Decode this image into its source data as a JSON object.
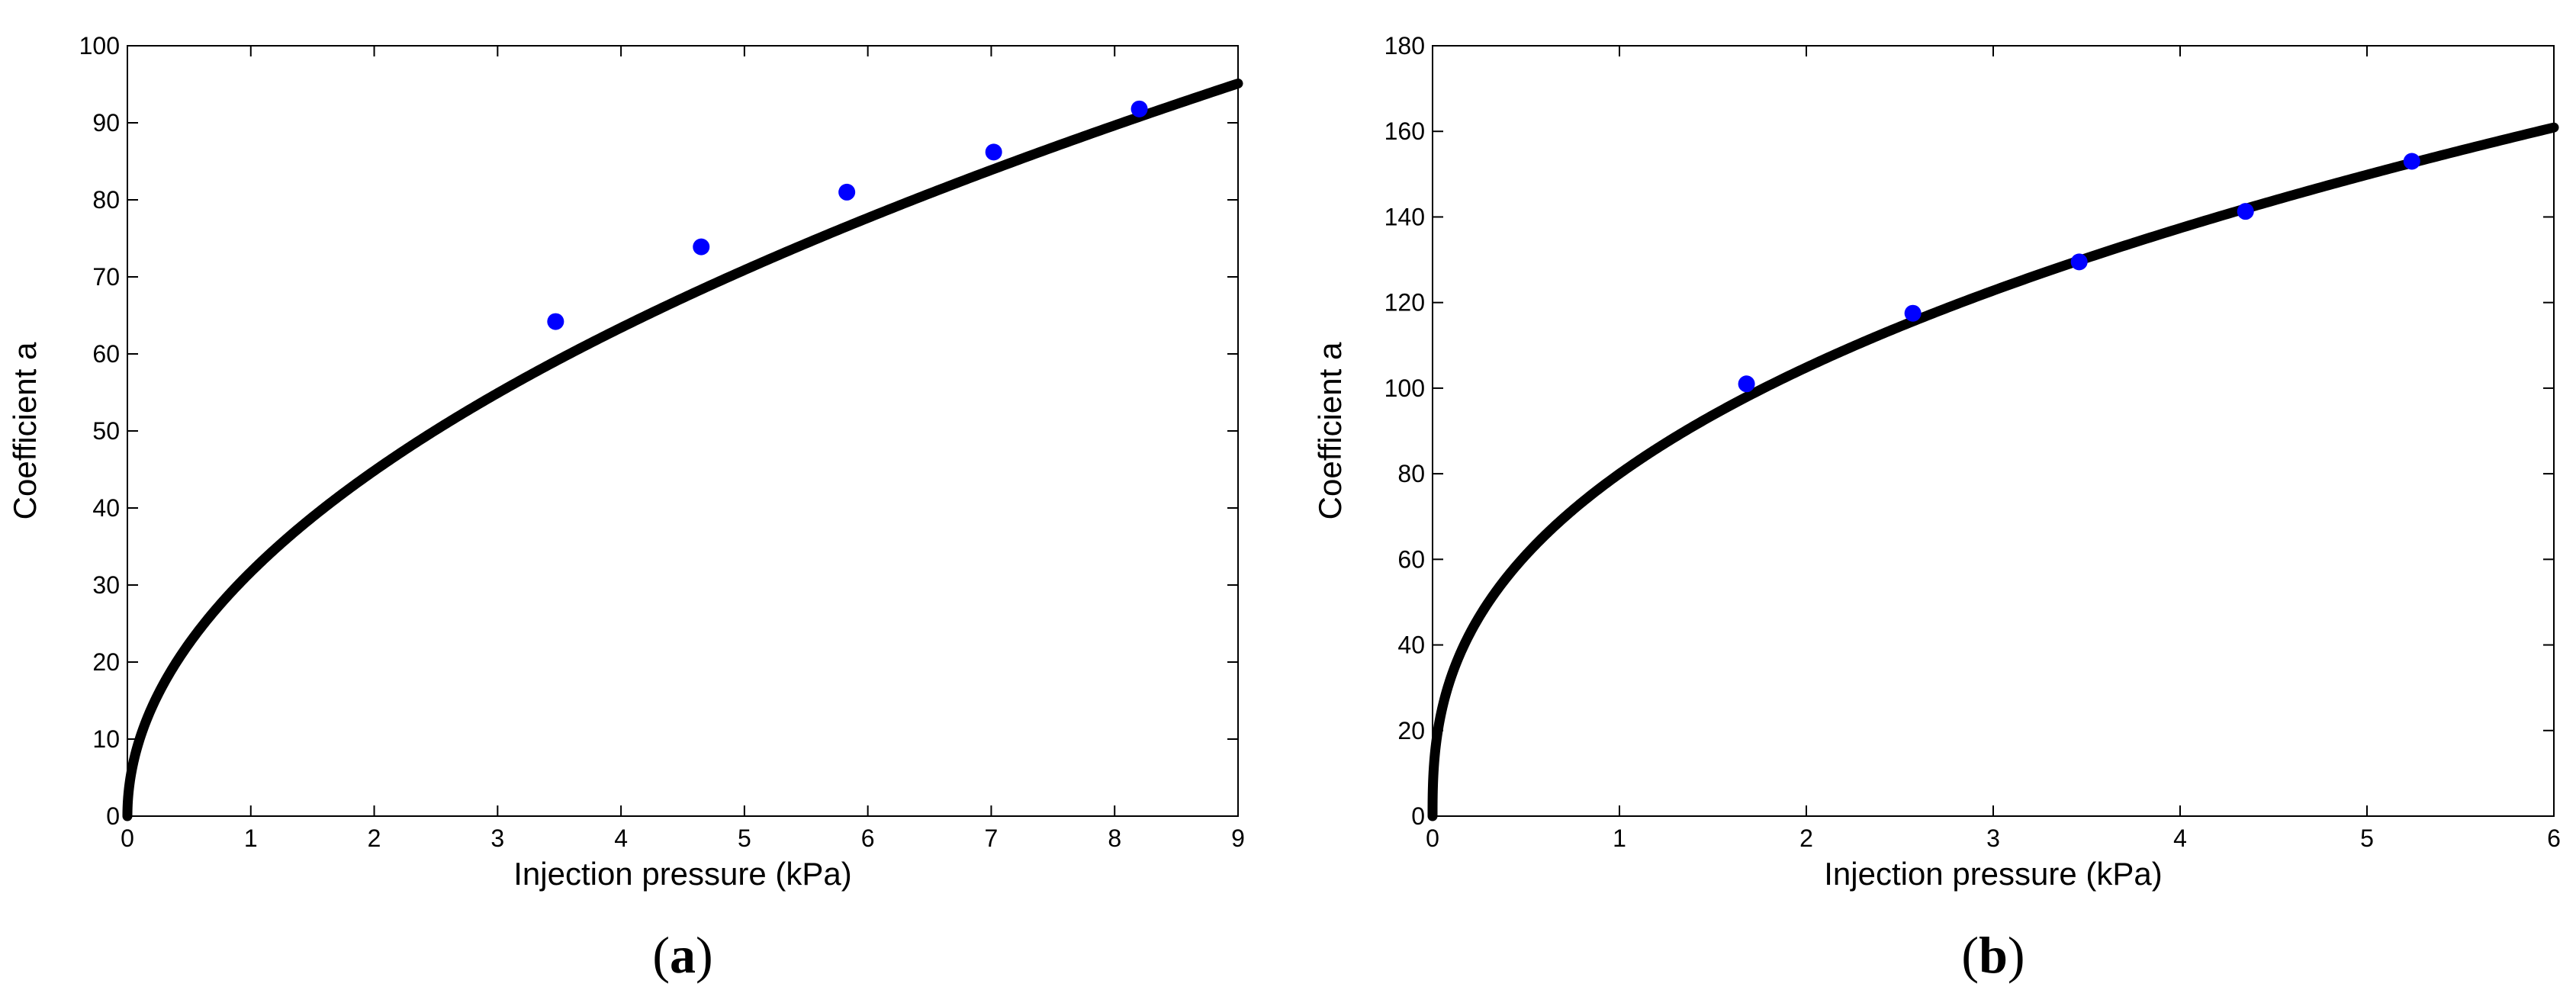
{
  "chart_data": [
    {
      "type": "scatter",
      "panel_label": "a",
      "xlabel": "Injection pressure (kPa)",
      "ylabel": "Coefficient a",
      "xlim": [
        0,
        9
      ],
      "ylim": [
        0,
        100
      ],
      "xticks": [
        0,
        1,
        2,
        3,
        4,
        5,
        6,
        7,
        8,
        9
      ],
      "yticks": [
        0,
        10,
        20,
        30,
        40,
        50,
        60,
        70,
        80,
        90,
        100
      ],
      "grid": false,
      "points": {
        "color": "#0000ff",
        "x": [
          3.47,
          4.65,
          5.83,
          7.02,
          8.2
        ],
        "y": [
          64.2,
          73.9,
          81.0,
          86.2,
          91.8
        ]
      },
      "fit": {
        "color": "#000000",
        "function": "y = 31.7 * x^0.5",
        "coefficient": 31.7,
        "exponent": 0.5
      }
    },
    {
      "type": "scatter",
      "panel_label": "b",
      "xlabel": "Injection pressure (kPa)",
      "ylabel": "Coefficient a",
      "xlim": [
        0,
        6
      ],
      "ylim": [
        0,
        180
      ],
      "xticks": [
        0,
        1,
        2,
        3,
        4,
        5,
        6
      ],
      "yticks": [
        0,
        20,
        40,
        60,
        80,
        100,
        120,
        140,
        160,
        180
      ],
      "grid": false,
      "points": {
        "color": "#0000ff",
        "x": [
          1.68,
          2.57,
          3.46,
          4.35,
          5.24
        ],
        "y": [
          101,
          117.5,
          129.5,
          141.3,
          153
        ]
      },
      "fit": {
        "color": "#000000",
        "function": "y = 80 * x^0.39",
        "coefficient": 80,
        "exponent": 0.39
      }
    }
  ]
}
